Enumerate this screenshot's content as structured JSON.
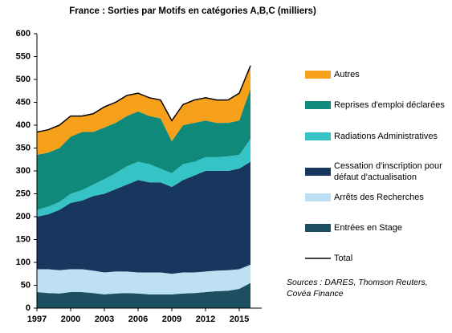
{
  "chart_data": {
    "type": "stacked_area",
    "title": "France : Sorties par Motifs en catégories A,B,C (milliers)",
    "annotation": "Sources : DARES, Thomson Reuters, Covéa Finance",
    "x": [
      1997,
      1998,
      1999,
      2000,
      2001,
      2002,
      2003,
      2004,
      2005,
      2006,
      2007,
      2008,
      2009,
      2010,
      2011,
      2012,
      2013,
      2014,
      2015,
      2016
    ],
    "xlim": [
      1997,
      2017
    ],
    "xticks": [
      1997,
      2000,
      2003,
      2006,
      2009,
      2012,
      2015
    ],
    "ylim": [
      0,
      600
    ],
    "yticks": [
      0,
      50,
      100,
      150,
      200,
      250,
      300,
      350,
      400,
      450,
      500,
      550,
      600
    ],
    "series": [
      {
        "name": "Entrées en Stage",
        "color": "#1d4f63",
        "values": [
          35,
          33,
          32,
          35,
          35,
          33,
          30,
          32,
          33,
          32,
          30,
          30,
          30,
          32,
          33,
          35,
          37,
          38,
          42,
          55
        ]
      },
      {
        "name": "Arrêts des Recherches",
        "color": "#bde0f3",
        "values": [
          50,
          52,
          51,
          50,
          50,
          49,
          48,
          48,
          47,
          46,
          48,
          48,
          45,
          46,
          45,
          45,
          45,
          45,
          43,
          40
        ]
      },
      {
        "name": "Cessation d'inscription pour défaut d'actualisation",
        "color": "#17375e",
        "values": [
          115,
          120,
          132,
          145,
          150,
          163,
          172,
          180,
          190,
          202,
          197,
          197,
          190,
          202,
          212,
          220,
          218,
          217,
          220,
          225
        ]
      },
      {
        "name": "Radiations Administratives",
        "color": "#35c3c6",
        "values": [
          15,
          17,
          17,
          20,
          23,
          25,
          32,
          35,
          40,
          40,
          40,
          30,
          30,
          35,
          30,
          30,
          30,
          32,
          30,
          50
        ]
      },
      {
        "name": "Reprises d'emploi déclarées",
        "color": "#0f8a7a",
        "values": [
          120,
          118,
          118,
          125,
          127,
          115,
          113,
          110,
          110,
          110,
          105,
          110,
          70,
          85,
          85,
          80,
          75,
          73,
          75,
          110
        ]
      },
      {
        "name": "Autres",
        "color": "#f7a11a",
        "values": [
          50,
          50,
          50,
          45,
          35,
          40,
          45,
          45,
          45,
          40,
          40,
          40,
          45,
          45,
          50,
          50,
          50,
          50,
          60,
          50
        ]
      }
    ],
    "total": {
      "name": "Total",
      "color": "#000000",
      "values": [
        385,
        390,
        400,
        420,
        420,
        425,
        440,
        450,
        465,
        470,
        460,
        455,
        410,
        445,
        455,
        460,
        455,
        455,
        470,
        530
      ]
    }
  }
}
